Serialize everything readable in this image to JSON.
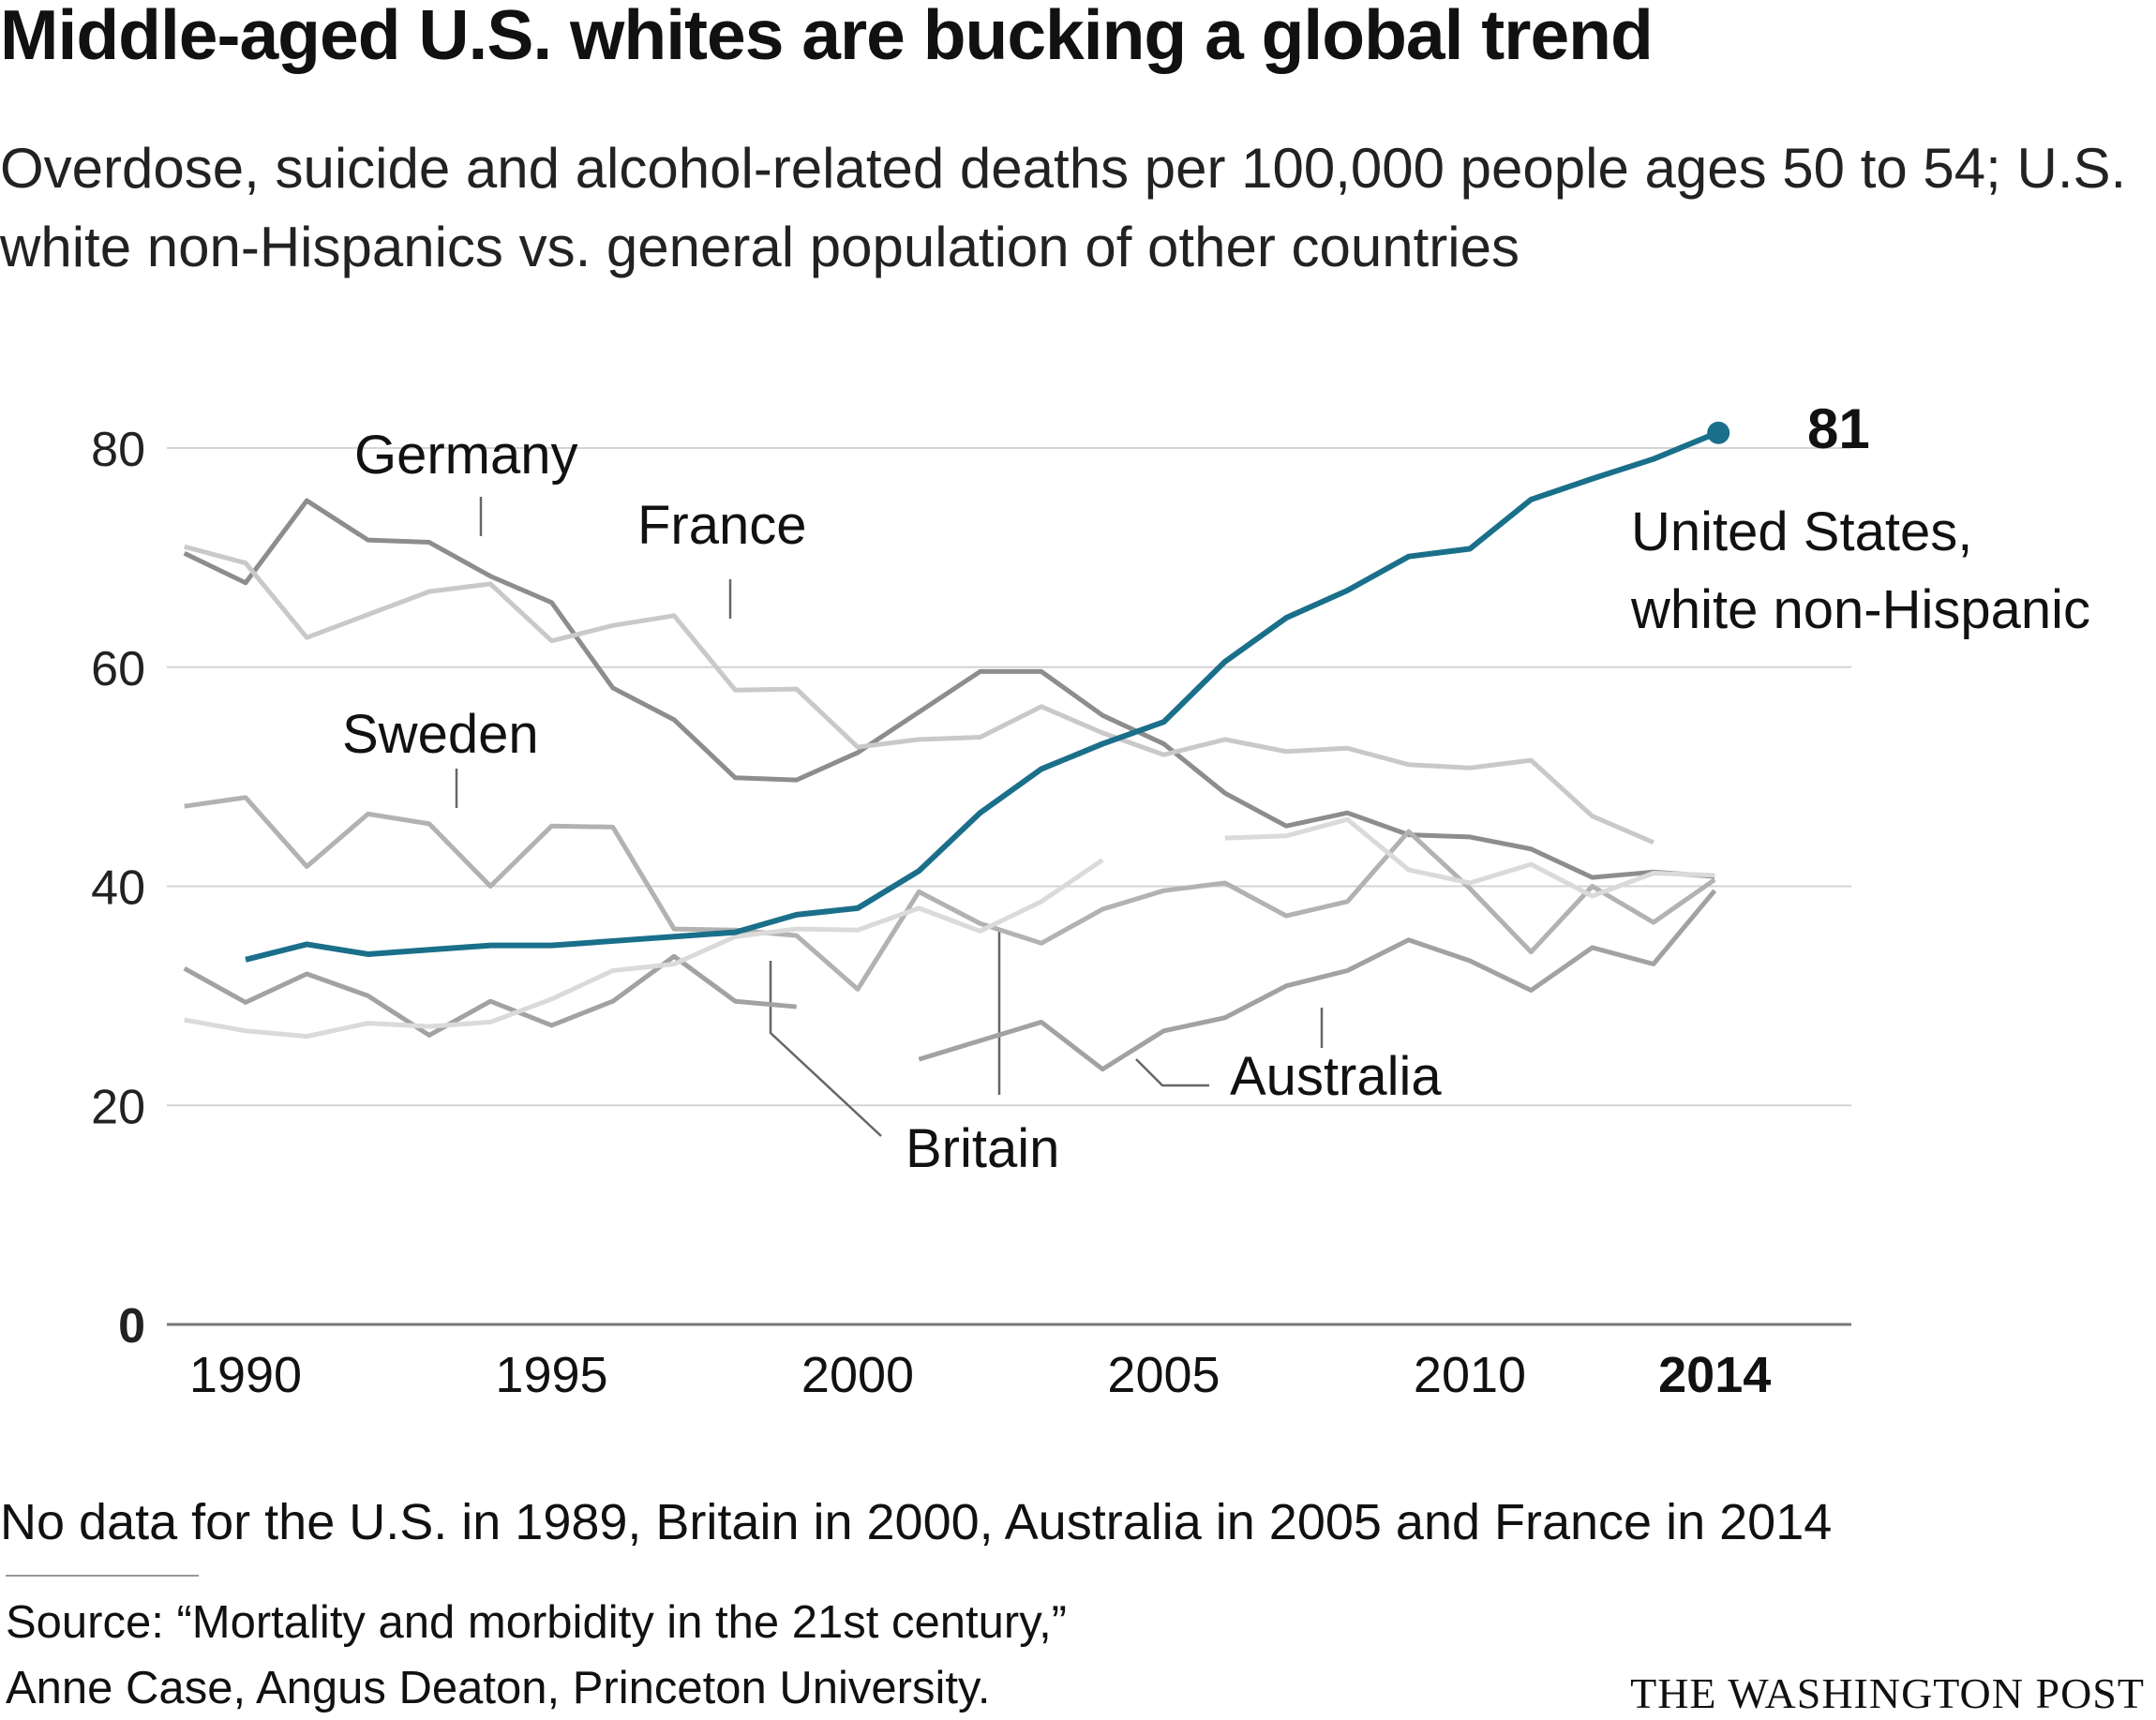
{
  "header": {
    "title": "Middle-aged U.S. whites are bucking a global trend",
    "subtitle": "Overdose, suicide and alcohol-related deaths per 100,000 people ages 50 to 54; U.S. white non-Hispanics vs. general population of other countries"
  },
  "footer": {
    "note": "No data for the U.S. in 1989, Britain in 2000, Australia in 2005 and France in 2014",
    "source_line1": "Source: “Mortality and morbidity in the 21st century,”",
    "source_line2": "Anne Case, Angus Deaton, Princeton University.",
    "credit": "THE WASHINGTON POST"
  },
  "chart_data": {
    "type": "line",
    "title": "Middle-aged U.S. whites are bucking a global trend",
    "xlabel": "",
    "ylabel": "",
    "xlim": [
      1989,
      2014
    ],
    "ylim": [
      0,
      80
    ],
    "x_ticks": [
      1990,
      1995,
      2000,
      2005,
      2010,
      2014
    ],
    "x_tick_labels": [
      "1990",
      "1995",
      "2000",
      "2005",
      "2010",
      "2014"
    ],
    "y_ticks": [
      0,
      20,
      40,
      60,
      80
    ],
    "y_tick_labels": [
      "0",
      "20",
      "40",
      "60",
      "80"
    ],
    "grid": true,
    "colors": {
      "highlight": "#1a6f8a",
      "marker": "#1a6f8a"
    },
    "highlight_label": {
      "value_text": "81",
      "line1": "United States,",
      "line2": "white non-Hispanic"
    },
    "series": [
      {
        "name": "Germany",
        "color": "#8d8d8d",
        "x": [
          1989,
          1990,
          1991,
          1992,
          1993,
          1994,
          1995,
          1996,
          1997,
          1998,
          1999,
          2000,
          2001,
          2002,
          2003,
          2004,
          2005,
          2006,
          2007,
          2008,
          2009,
          2010,
          2011,
          2012,
          2013,
          2014
        ],
        "y": [
          70.4,
          67.7,
          75.2,
          71.6,
          71.4,
          68.3,
          65.9,
          58.1,
          55.2,
          49.9,
          49.7,
          52.2,
          55.9,
          59.6,
          59.6,
          55.6,
          53.0,
          48.5,
          45.5,
          46.7,
          44.7,
          44.5,
          43.4,
          40.8,
          41.3,
          40.9
        ]
      },
      {
        "name": "France",
        "color": "#c9c9c9",
        "x": [
          1989,
          1990,
          1991,
          1992,
          1993,
          1994,
          1995,
          1996,
          1997,
          1998,
          1999,
          2000,
          2001,
          2002,
          2003,
          2004,
          2005,
          2006,
          2007,
          2008,
          2009,
          2010,
          2011,
          2012,
          2013
        ],
        "y": [
          71.0,
          69.5,
          62.7,
          64.8,
          66.9,
          67.6,
          62.4,
          63.8,
          64.7,
          57.9,
          58.0,
          52.7,
          53.4,
          53.6,
          56.4,
          54.0,
          52.0,
          53.4,
          52.3,
          52.6,
          51.1,
          50.8,
          51.5,
          46.4,
          44.0
        ]
      },
      {
        "name": "Sweden",
        "color": "#b2b2b2",
        "x": [
          1989,
          1990,
          1991,
          1992,
          1993,
          1994,
          1995,
          1996,
          1997,
          1998,
          1999,
          2000,
          2001,
          2002,
          2003,
          2004,
          2005,
          2006,
          2007,
          2008,
          2009,
          2010,
          2011,
          2012,
          2013,
          2014
        ],
        "y": [
          47.3,
          48.1,
          41.8,
          46.6,
          45.7,
          40.0,
          45.5,
          45.4,
          36.1,
          36.0,
          35.5,
          30.6,
          39.5,
          36.6,
          34.8,
          37.9,
          39.6,
          40.3,
          37.3,
          38.6,
          45.0,
          39.8,
          34.0,
          40.0,
          36.7,
          40.6
        ]
      },
      {
        "name": "Britain",
        "color": "#a2a2a2",
        "x": [
          1989,
          1990,
          1991,
          1992,
          1993,
          1994,
          1995,
          1996,
          1997,
          1998,
          1999,
          2001,
          2002,
          2003,
          2004,
          2005,
          2006,
          2007,
          2008,
          2009,
          2010,
          2011,
          2012,
          2013,
          2014
        ],
        "y": [
          32.5,
          29.4,
          32.0,
          30.0,
          26.4,
          29.5,
          27.3,
          29.5,
          33.6,
          29.5,
          29.0,
          24.2,
          25.9,
          27.6,
          23.3,
          26.8,
          28.0,
          30.9,
          32.3,
          35.1,
          33.2,
          30.5,
          34.4,
          32.9,
          39.6
        ]
      },
      {
        "name": "Australia",
        "color": "#dadada",
        "x": [
          1989,
          1990,
          1991,
          1992,
          1993,
          1994,
          1995,
          1996,
          1997,
          1998,
          1999,
          2000,
          2001,
          2002,
          2003,
          2004,
          2006,
          2007,
          2008,
          2009,
          2010,
          2011,
          2012,
          2013,
          2014
        ],
        "y": [
          27.8,
          26.8,
          26.3,
          27.5,
          27.2,
          27.6,
          29.7,
          32.3,
          32.9,
          35.4,
          36.1,
          36.0,
          38.0,
          35.9,
          38.6,
          42.4,
          44.4,
          44.6,
          46.1,
          41.5,
          40.3,
          42.0,
          39.1,
          41.2,
          41.0
        ]
      },
      {
        "name": "United States, white non-Hispanic",
        "color": "#1a6f8a",
        "x": [
          1990,
          1991,
          1992,
          1993,
          1994,
          1995,
          1996,
          1997,
          1998,
          1999,
          2000,
          2001,
          2002,
          2003,
          2004,
          2005,
          2006,
          2007,
          2008,
          2009,
          2010,
          2011,
          2012,
          2013,
          2014
        ],
        "y": [
          33.3,
          34.7,
          33.8,
          34.2,
          34.6,
          34.6,
          35.0,
          35.4,
          35.8,
          37.4,
          38.0,
          41.4,
          46.7,
          50.7,
          53.0,
          55.0,
          60.5,
          64.5,
          67.0,
          70.1,
          70.8,
          75.3,
          77.2,
          79.0,
          81.3
        ]
      }
    ]
  }
}
